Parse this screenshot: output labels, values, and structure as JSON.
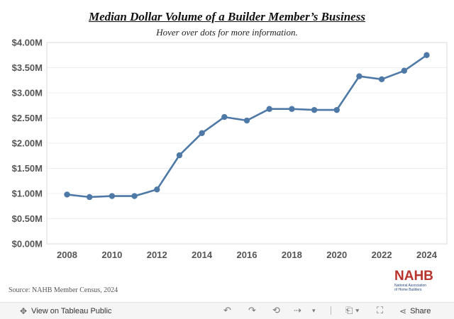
{
  "header": {
    "title": "Median Dollar Volume of a Builder Member’s Business",
    "subtitle": "Hover over dots for more information."
  },
  "chart_data": {
    "type": "line",
    "x": [
      2008,
      2009,
      2010,
      2011,
      2012,
      2013,
      2014,
      2015,
      2016,
      2017,
      2018,
      2019,
      2020,
      2021,
      2022,
      2023,
      2024
    ],
    "series": [
      {
        "values": [
          0.98,
          0.93,
          0.95,
          0.95,
          1.08,
          1.76,
          2.2,
          2.52,
          2.45,
          2.68,
          2.68,
          2.66,
          2.66,
          3.33,
          3.27,
          3.44,
          3.75
        ]
      }
    ],
    "y_unit": "$M",
    "ylim": [
      0,
      4.0
    ],
    "yticks": [
      0.0,
      0.5,
      1.0,
      1.5,
      2.0,
      2.5,
      3.0,
      3.5,
      4.0
    ],
    "ytick_labels": [
      "$0.00M",
      "$0.50M",
      "$1.00M",
      "$1.50M",
      "$2.00M",
      "$2.50M",
      "$3.00M",
      "$3.50M",
      "$4.00M"
    ],
    "xticks": [
      2008,
      2010,
      2012,
      2014,
      2016,
      2018,
      2020,
      2022,
      2024
    ],
    "xtick_labels": [
      "2008",
      "2010",
      "2012",
      "2014",
      "2016",
      "2018",
      "2020",
      "2022",
      "2024"
    ],
    "xlim": [
      2007.1,
      2024.9
    ],
    "grid": true,
    "line_color": "#4e79a7"
  },
  "source": "Source: NAHB Member Census, 2024",
  "logo": {
    "mark": "NAHB",
    "line1": "National Association",
    "line2": "of Home Builders"
  },
  "footer": {
    "view_label": "View on Tableau Public",
    "share_label": "Share",
    "icons": [
      "tableau-icon",
      "undo-icon",
      "redo-icon",
      "revert-icon",
      "refresh-icon",
      "pause-icon",
      "comment-icon",
      "fullscreen-icon",
      "share-icon"
    ]
  }
}
